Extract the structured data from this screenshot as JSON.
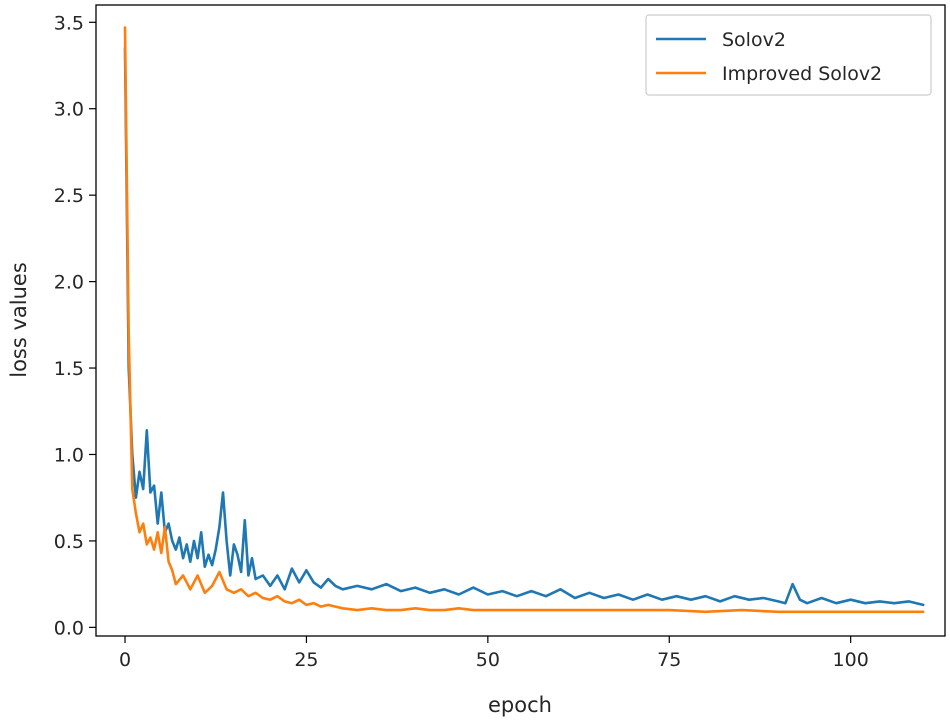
{
  "chart_data": {
    "type": "line",
    "title": "",
    "xlabel": "epoch",
    "ylabel": "loss values",
    "xlim": [
      -4,
      113
    ],
    "ylim": [
      -0.05,
      3.6
    ],
    "xticks": [
      0,
      25,
      50,
      75,
      100
    ],
    "yticks": [
      0.0,
      0.5,
      1.0,
      1.5,
      2.0,
      2.5,
      3.0,
      3.5
    ],
    "xtick_labels": [
      "0",
      "25",
      "50",
      "75",
      "100"
    ],
    "ytick_labels": [
      "0.0",
      "0.5",
      "1.0",
      "1.5",
      "2.0",
      "2.5",
      "3.0",
      "3.5"
    ],
    "grid": false,
    "legend_position": "top-right",
    "series": [
      {
        "name": "Solov2",
        "color": "#1f77b4",
        "x": [
          0,
          0.5,
          1,
          1.5,
          2,
          2.5,
          3,
          3.5,
          4,
          4.5,
          5,
          5.5,
          6,
          6.5,
          7,
          7.5,
          8,
          8.5,
          9,
          9.5,
          10,
          10.5,
          11,
          11.5,
          12,
          12.5,
          13,
          13.5,
          14,
          14.5,
          15,
          15.5,
          16,
          16.5,
          17,
          17.5,
          18,
          19,
          20,
          21,
          22,
          23,
          24,
          25,
          26,
          27,
          28,
          29,
          30,
          32,
          34,
          36,
          38,
          40,
          42,
          44,
          46,
          48,
          50,
          52,
          54,
          56,
          58,
          60,
          62,
          64,
          66,
          68,
          70,
          72,
          74,
          76,
          78,
          80,
          82,
          84,
          86,
          88,
          90,
          91,
          92,
          93,
          94,
          96,
          98,
          100,
          102,
          104,
          106,
          108,
          110
        ],
        "values": [
          3.35,
          1.5,
          1.0,
          0.75,
          0.9,
          0.8,
          1.14,
          0.78,
          0.82,
          0.6,
          0.78,
          0.55,
          0.6,
          0.5,
          0.45,
          0.52,
          0.4,
          0.48,
          0.38,
          0.5,
          0.4,
          0.55,
          0.35,
          0.42,
          0.36,
          0.45,
          0.58,
          0.78,
          0.5,
          0.3,
          0.48,
          0.42,
          0.32,
          0.62,
          0.3,
          0.4,
          0.28,
          0.3,
          0.24,
          0.3,
          0.22,
          0.34,
          0.26,
          0.33,
          0.26,
          0.23,
          0.28,
          0.24,
          0.22,
          0.24,
          0.22,
          0.25,
          0.21,
          0.23,
          0.2,
          0.22,
          0.19,
          0.23,
          0.19,
          0.21,
          0.18,
          0.21,
          0.18,
          0.22,
          0.17,
          0.2,
          0.17,
          0.19,
          0.16,
          0.19,
          0.16,
          0.18,
          0.16,
          0.18,
          0.15,
          0.18,
          0.16,
          0.17,
          0.15,
          0.14,
          0.25,
          0.16,
          0.14,
          0.17,
          0.14,
          0.16,
          0.14,
          0.15,
          0.14,
          0.15,
          0.13
        ]
      },
      {
        "name": "Improved Solov2",
        "color": "#ff7f0e",
        "x": [
          0,
          0.5,
          1,
          1.5,
          2,
          2.5,
          3,
          3.5,
          4,
          4.5,
          5,
          5.5,
          6,
          6.5,
          7,
          8,
          9,
          10,
          11,
          12,
          13,
          14,
          15,
          16,
          17,
          18,
          19,
          20,
          21,
          22,
          23,
          24,
          25,
          26,
          27,
          28,
          29,
          30,
          32,
          34,
          36,
          38,
          40,
          42,
          44,
          46,
          48,
          50,
          55,
          60,
          65,
          70,
          75,
          80,
          85,
          90,
          95,
          100,
          105,
          110
        ],
        "values": [
          3.47,
          1.7,
          0.8,
          0.66,
          0.55,
          0.6,
          0.48,
          0.52,
          0.45,
          0.55,
          0.43,
          0.58,
          0.38,
          0.33,
          0.25,
          0.3,
          0.22,
          0.3,
          0.2,
          0.24,
          0.32,
          0.22,
          0.2,
          0.22,
          0.18,
          0.2,
          0.17,
          0.16,
          0.18,
          0.15,
          0.14,
          0.16,
          0.13,
          0.14,
          0.12,
          0.13,
          0.12,
          0.11,
          0.1,
          0.11,
          0.1,
          0.1,
          0.11,
          0.1,
          0.1,
          0.11,
          0.1,
          0.1,
          0.1,
          0.1,
          0.1,
          0.1,
          0.1,
          0.09,
          0.1,
          0.09,
          0.09,
          0.09,
          0.09,
          0.09
        ]
      }
    ]
  }
}
